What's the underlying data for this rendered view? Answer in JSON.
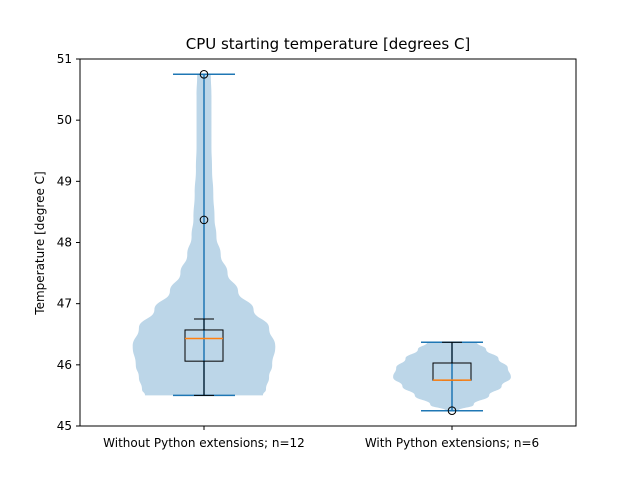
{
  "chart_data": {
    "type": "violin",
    "title": "CPU starting temperature [degrees C]",
    "xlabel": "",
    "ylabel": "Temperature [degree C]",
    "ylim": [
      45,
      51
    ],
    "yticks": [
      45,
      46,
      47,
      48,
      49,
      50,
      51
    ],
    "grid": false,
    "categories": [
      "Without Python extensions; n=12",
      "With Python extensions; n=6"
    ],
    "violins": [
      {
        "name": "Without Python extensions; n=12",
        "min": 45.5,
        "max": 50.75,
        "q1": 46.06,
        "median": 46.43,
        "q3": 46.57,
        "whisker_low": 45.5,
        "whisker_high": 46.75,
        "outliers": [
          48.37,
          50.75
        ],
        "density_profile": [
          [
            45.5,
            0.95
          ],
          [
            45.6,
            1.0
          ],
          [
            45.8,
            1.05
          ],
          [
            46.0,
            1.1
          ],
          [
            46.3,
            1.15
          ],
          [
            46.6,
            1.05
          ],
          [
            46.9,
            0.8
          ],
          [
            47.2,
            0.55
          ],
          [
            47.5,
            0.38
          ],
          [
            47.8,
            0.27
          ],
          [
            48.1,
            0.2
          ],
          [
            48.4,
            0.17
          ],
          [
            48.8,
            0.15
          ],
          [
            49.2,
            0.13
          ],
          [
            49.6,
            0.12
          ],
          [
            50.0,
            0.12
          ],
          [
            50.4,
            0.12
          ],
          [
            50.75,
            0.11
          ]
        ]
      },
      {
        "name": "With Python extensions; n=6",
        "min": 45.25,
        "max": 46.37,
        "q1": 45.75,
        "median": 45.75,
        "q3": 46.03,
        "whisker_low": 45.75,
        "whisker_high": 46.37,
        "outliers": [
          45.25
        ],
        "density_profile": [
          [
            45.25,
            0.1
          ],
          [
            45.35,
            0.35
          ],
          [
            45.5,
            0.6
          ],
          [
            45.65,
            0.8
          ],
          [
            45.8,
            0.95
          ],
          [
            45.95,
            0.9
          ],
          [
            46.1,
            0.75
          ],
          [
            46.25,
            0.55
          ],
          [
            46.37,
            0.4
          ]
        ]
      }
    ],
    "colors": {
      "violin_fill": "#bcd6e8",
      "violin_lines": "#1f77b4",
      "median": "#ff7f0e",
      "box": "#000000"
    }
  }
}
